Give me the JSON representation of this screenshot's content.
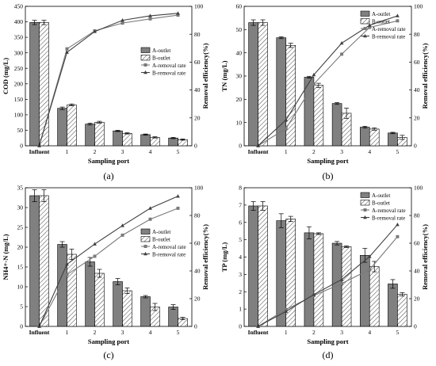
{
  "chart_data": [
    {
      "type": "bar",
      "panel_label": "(a)",
      "categories": [
        "Influent",
        "1",
        "2",
        "3",
        "4",
        "5"
      ],
      "xlabel": "Sampling port",
      "ylabel": "COD (mg/L)",
      "ylim": [
        0,
        450
      ],
      "yticks": [
        0,
        50,
        100,
        150,
        200,
        250,
        300,
        350,
        400,
        450
      ],
      "y2label": "Removal efficiency(%)",
      "y2lim": [
        0,
        100
      ],
      "y2ticks": [
        0,
        20,
        40,
        60,
        80,
        100
      ],
      "bar_series": [
        {
          "name": "A-outlet",
          "values": [
            398,
            121,
            70,
            48,
            36,
            25
          ],
          "errors": [
            7,
            4,
            3,
            2,
            2,
            2
          ]
        },
        {
          "name": "B-outlet",
          "values": [
            398,
            132,
            76,
            40,
            27,
            20
          ],
          "errors": [
            7,
            3,
            3,
            2,
            2,
            2
          ]
        }
      ],
      "line_series": [
        {
          "name": "A-removal rate",
          "marker": "square",
          "values": [
            0,
            69.5,
            82.4,
            88,
            91,
            93.7
          ]
        },
        {
          "name": "B-removal rate",
          "marker": "triangle",
          "values": [
            0,
            67,
            81.9,
            90,
            93.2,
            95
          ]
        }
      ],
      "legend_position": "right"
    },
    {
      "type": "bar",
      "panel_label": "(b)",
      "categories": [
        "Influent",
        "1",
        "2",
        "3",
        "4",
        "5"
      ],
      "xlabel": "Sampling port",
      "ylabel": "TN (mg/L)",
      "ylim": [
        0,
        60
      ],
      "yticks": [
        0,
        10,
        20,
        30,
        40,
        50,
        60
      ],
      "y2label": "Removal efficiency(%)",
      "y2lim": [
        0,
        100
      ],
      "y2ticks": [
        0,
        20,
        40,
        60,
        80,
        100
      ],
      "bar_series": [
        {
          "name": "A-outlet",
          "values": [
            53,
            46.5,
            29.5,
            18.2,
            8,
            5.5
          ],
          "errors": [
            1.2,
            0.4,
            0.4,
            0.4,
            0.4,
            0.3
          ]
        },
        {
          "name": "B-outlet",
          "values": [
            53,
            43.2,
            26,
            14,
            7.2,
            3.6
          ],
          "errors": [
            1.2,
            0.9,
            0.9,
            2.2,
            0.5,
            0.9
          ]
        }
      ],
      "line_series": [
        {
          "name": "A-removal rate",
          "marker": "square",
          "values": [
            0,
            12.3,
            44.3,
            65.7,
            84.9,
            89.6
          ]
        },
        {
          "name": "B-removal rate",
          "marker": "triangle",
          "values": [
            0,
            18.5,
            50.9,
            73.6,
            86.4,
            93.2
          ]
        }
      ],
      "legend_position": "top-right"
    },
    {
      "type": "bar",
      "panel_label": "(c)",
      "categories": [
        "Influent",
        "1",
        "2",
        "3",
        "4",
        "5"
      ],
      "xlabel": "Sampling port",
      "ylabel": "NH4+-N (mg/L)",
      "ylim": [
        0,
        35
      ],
      "yticks": [
        0,
        5,
        10,
        15,
        20,
        25,
        30,
        35
      ],
      "y2label": "Removal efficiency(%)",
      "y2lim": [
        0,
        100
      ],
      "y2ticks": [
        0,
        20,
        40,
        60,
        80,
        100
      ],
      "bar_series": [
        {
          "name": "A-outlet",
          "values": [
            33,
            20.7,
            16.3,
            11.3,
            7.5,
            4.9
          ],
          "errors": [
            1.5,
            0.7,
            1.1,
            0.8,
            0.3,
            0.6
          ]
        },
        {
          "name": "B-outlet",
          "values": [
            33,
            18.2,
            13.4,
            9,
            4.9,
            2
          ],
          "errors": [
            1.5,
            1.3,
            1,
            0.7,
            0.9,
            0.3
          ]
        }
      ],
      "line_series": [
        {
          "name": "A-removal rate",
          "marker": "square",
          "values": [
            0,
            37.3,
            50.6,
            65.8,
            77.3,
            85.2
          ]
        },
        {
          "name": "B-removal rate",
          "marker": "triangle",
          "values": [
            0,
            44.8,
            59.4,
            72.7,
            85.2,
            93.9
          ]
        }
      ],
      "legend_position": "right"
    },
    {
      "type": "bar",
      "panel_label": "(d)",
      "categories": [
        "Influent",
        "1",
        "2",
        "3",
        "4",
        "5"
      ],
      "xlabel": "Sampling port",
      "ylabel": "TP (mg/L)",
      "ylim": [
        0,
        8
      ],
      "yticks": [
        0,
        1,
        2,
        3,
        4,
        5,
        6,
        7,
        8
      ],
      "y2label": "Removal efficiency(%)",
      "y2lim": [
        0,
        100
      ],
      "y2ticks": [
        0,
        20,
        40,
        60,
        80,
        100
      ],
      "bar_series": [
        {
          "name": "A-outlet",
          "values": [
            6.95,
            6.1,
            5.4,
            4.8,
            4.1,
            2.45
          ],
          "errors": [
            0.25,
            0.4,
            0.35,
            0.1,
            0.4,
            0.25
          ]
        },
        {
          "name": "B-outlet",
          "values": [
            6.95,
            6.2,
            5.35,
            4.6,
            3.45,
            1.85
          ],
          "errors": [
            0.25,
            0.15,
            0.05,
            0.05,
            0.3,
            0.1
          ]
        }
      ],
      "line_series": [
        {
          "name": "A-removal rate",
          "marker": "square",
          "values": [
            0,
            12.2,
            22.3,
            30.9,
            41,
            64.7
          ]
        },
        {
          "name": "B-removal rate",
          "marker": "triangle",
          "values": [
            0,
            10.8,
            23,
            33.8,
            50.4,
            73.4
          ]
        }
      ],
      "legend_position": "top-right"
    }
  ]
}
